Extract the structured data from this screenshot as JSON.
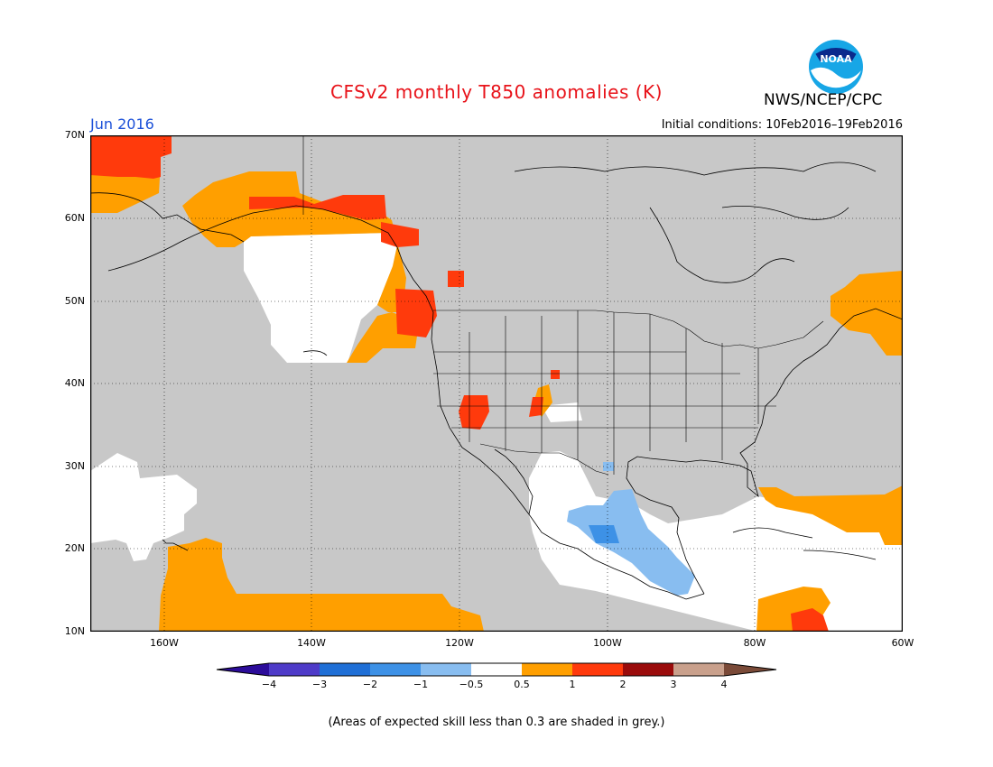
{
  "title": "CFSv2 monthly T850 anomalies (K)",
  "agency": "NWS/NCEP/CPC",
  "logo_text": "NOAA",
  "month_label": "Jun 2016",
  "initial_conditions": "Initial conditions: 10Feb2016–19Feb2016",
  "footnote": "(Areas of expected skill less than 0.3 are shaded in grey.)",
  "map": {
    "lat_labels": [
      "70N",
      "60N",
      "50N",
      "40N",
      "30N",
      "20N",
      "10N"
    ],
    "lon_labels": [
      "160W",
      "140W",
      "120W",
      "100W",
      "80W",
      "60W"
    ],
    "lat_range": [
      10,
      70
    ],
    "lon_range": [
      -170,
      -60
    ]
  },
  "colorbar": {
    "tick_labels": [
      "−4",
      "−3",
      "−2",
      "−1",
      "−0.5",
      "0.5",
      "1",
      "2",
      "3",
      "4"
    ],
    "colors": [
      "#2c0c9a",
      "#4e3bc8",
      "#1f6fd6",
      "#3d91e6",
      "#88bdf0",
      "#ffffff",
      "#ff9f00",
      "#ff3a0c",
      "#9a0b0b",
      "#c9a08c",
      "#7a4a38"
    ],
    "grey_color": "#c8c8c8"
  }
}
